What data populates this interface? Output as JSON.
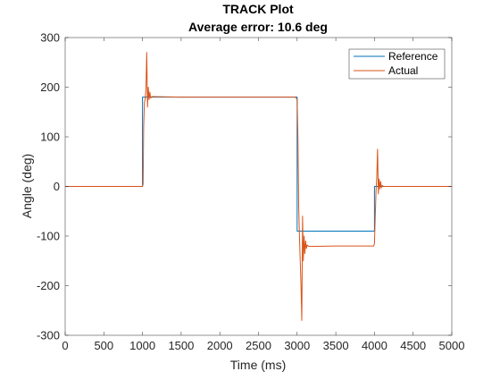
{
  "chart_data": {
    "type": "line",
    "title": "TRACK Plot",
    "subtitle": "Average error:  10.6 deg",
    "xlabel": "Time (ms)",
    "ylabel": "Angle (deg)",
    "xlim": [
      0,
      5000
    ],
    "ylim": [
      -300,
      300
    ],
    "xticks": [
      0,
      500,
      1000,
      1500,
      2000,
      2500,
      3000,
      3500,
      4000,
      4500,
      5000
    ],
    "yticks": [
      -300,
      -200,
      -100,
      0,
      100,
      200,
      300
    ],
    "grid": false,
    "legend_position": "top-right",
    "series": [
      {
        "name": "Reference",
        "color": "#0072BD",
        "x": [
          0,
          1000,
          1000,
          3000,
          3000,
          4000,
          4000,
          5000
        ],
        "y": [
          0,
          0,
          180,
          180,
          -90,
          -90,
          0,
          0
        ]
      },
      {
        "name": "Actual",
        "color": "#D95319",
        "x": [
          0,
          1000,
          1008,
          1015,
          1025,
          1035,
          1045,
          1055,
          1065,
          1075,
          1085,
          1095,
          1105,
          1120,
          1500,
          2980,
          3000,
          3010,
          3020,
          3030,
          3040,
          3050,
          3060,
          3070,
          3080,
          3090,
          3100,
          3110,
          3120,
          3130,
          3150,
          3500,
          3990,
          4000,
          4010,
          4020,
          4030,
          4040,
          4050,
          4060,
          4070,
          4080,
          4090,
          4100,
          4120,
          5000
        ],
        "y": [
          0,
          0,
          5,
          120,
          170,
          175,
          200,
          270,
          160,
          200,
          175,
          190,
          178,
          181,
          180,
          180,
          175,
          100,
          -40,
          -100,
          -150,
          -200,
          -270,
          -60,
          -150,
          -100,
          -135,
          -110,
          -125,
          -118,
          -121,
          -120,
          -120,
          -115,
          -60,
          -10,
          20,
          75,
          -15,
          15,
          -5,
          10,
          -3,
          2,
          0,
          0
        ]
      }
    ]
  }
}
